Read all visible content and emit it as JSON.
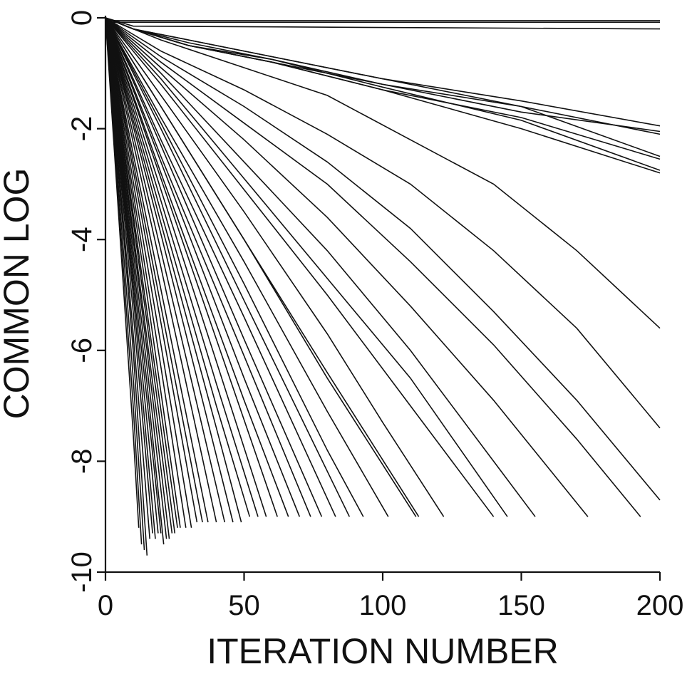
{
  "chart_data": {
    "type": "line",
    "title": "",
    "xlabel": "ITERATION NUMBER",
    "ylabel": "COMMON LOG",
    "xlim": [
      0,
      200
    ],
    "ylim": [
      -10,
      0
    ],
    "x_ticks": [
      "0",
      "50",
      "100",
      "150",
      "200"
    ],
    "y_ticks": [
      "0",
      "-2",
      "-4",
      "-6",
      "-8",
      "-10"
    ],
    "grid": false,
    "legend": "none",
    "line_color": "#111111",
    "series": [
      {
        "x": [
          0,
          200
        ],
        "y": [
          -0.05,
          -0.05
        ]
      },
      {
        "x": [
          0,
          200
        ],
        "y": [
          -0.08,
          -0.08
        ]
      },
      {
        "x": [
          0,
          10,
          200
        ],
        "y": [
          0,
          -0.15,
          -0.2
        ]
      },
      {
        "x": [
          0,
          10,
          30,
          60,
          100,
          150,
          200
        ],
        "y": [
          0,
          -0.2,
          -0.4,
          -0.7,
          -1.1,
          -1.5,
          -1.95
        ]
      },
      {
        "x": [
          0,
          10,
          30,
          60,
          100,
          150,
          200
        ],
        "y": [
          0,
          -0.2,
          -0.45,
          -0.75,
          -1.2,
          -1.7,
          -2.05
        ]
      },
      {
        "x": [
          0,
          10,
          30,
          60,
          100,
          150,
          200
        ],
        "y": [
          0,
          -0.2,
          -0.5,
          -0.8,
          -1.3,
          -1.8,
          -2.55
        ]
      },
      {
        "x": [
          0,
          10,
          30,
          60,
          100,
          150,
          200
        ],
        "y": [
          0,
          -0.2,
          -0.5,
          -0.75,
          -1.25,
          -1.85,
          -2.75
        ]
      },
      {
        "x": [
          0,
          10,
          30,
          60,
          100,
          150,
          200
        ],
        "y": [
          0,
          -0.2,
          -0.5,
          -0.8,
          -1.3,
          -2.0,
          -2.8
        ]
      },
      {
        "x": [
          0,
          10,
          30,
          60,
          100,
          150,
          200
        ],
        "y": [
          0,
          -0.2,
          -0.4,
          -0.7,
          -1.1,
          -1.6,
          -2.1
        ]
      },
      {
        "x": [
          0,
          10,
          30,
          60,
          100,
          150,
          200
        ],
        "y": [
          0,
          -0.2,
          -0.5,
          -0.8,
          -1.2,
          -1.6,
          -2.5
        ]
      },
      {
        "x": [
          0,
          20,
          50,
          80,
          110,
          140,
          170,
          200
        ],
        "y": [
          0,
          -0.4,
          -0.9,
          -1.4,
          -2.2,
          -3.0,
          -4.2,
          -5.6
        ]
      },
      {
        "x": [
          0,
          20,
          50,
          80,
          110,
          140,
          170,
          200
        ],
        "y": [
          0,
          -0.6,
          -1.3,
          -2.1,
          -3.0,
          -4.2,
          -5.6,
          -7.4
        ]
      },
      {
        "x": [
          0,
          20,
          50,
          80,
          110,
          140,
          170,
          200
        ],
        "y": [
          0,
          -0.7,
          -1.6,
          -2.6,
          -3.8,
          -5.3,
          -6.9,
          -8.7
        ]
      },
      {
        "x": [
          0,
          20,
          50,
          80,
          110,
          140,
          170,
          193
        ],
        "y": [
          0,
          -0.8,
          -1.9,
          -3.0,
          -4.4,
          -5.9,
          -7.6,
          -9.0
        ]
      },
      {
        "x": [
          0,
          20,
          50,
          80,
          110,
          140,
          174
        ],
        "y": [
          0,
          -0.9,
          -2.2,
          -3.6,
          -5.2,
          -6.9,
          -9.0
        ]
      },
      {
        "x": [
          0,
          20,
          50,
          80,
          110,
          140,
          155
        ],
        "y": [
          0,
          -1.0,
          -2.6,
          -4.2,
          -6.0,
          -8.0,
          -9.0
        ]
      },
      {
        "x": [
          0,
          20,
          50,
          80,
          110,
          145
        ],
        "y": [
          0,
          -1.1,
          -2.9,
          -4.7,
          -6.5,
          -9.0
        ]
      },
      {
        "x": [
          0,
          20,
          50,
          80,
          110,
          140
        ],
        "y": [
          0,
          -1.2,
          -3.1,
          -5.0,
          -7.0,
          -9.0
        ]
      },
      {
        "x": [
          0,
          20,
          50,
          80,
          100,
          122
        ],
        "y": [
          0,
          -1.4,
          -3.5,
          -5.7,
          -7.3,
          -9.0
        ]
      },
      {
        "x": [
          0,
          20,
          50,
          80,
          113
        ],
        "y": [
          0,
          -1.6,
          -4.0,
          -6.4,
          -9.0
        ]
      },
      {
        "x": [
          0,
          20,
          50,
          80,
          112
        ],
        "y": [
          0,
          -1.6,
          -4.0,
          -6.5,
          -9.0
        ]
      },
      {
        "x": [
          0,
          20,
          50,
          80,
          102
        ],
        "y": [
          0,
          -1.8,
          -4.4,
          -7.1,
          -9.0
        ]
      },
      {
        "x": [
          0,
          20,
          50,
          80,
          93
        ],
        "y": [
          0,
          -1.9,
          -4.8,
          -7.8,
          -9.0
        ]
      },
      {
        "x": [
          0,
          20,
          50,
          88
        ],
        "y": [
          0,
          -2.0,
          -5.1,
          -9.0
        ]
      },
      {
        "x": [
          0,
          20,
          50,
          83
        ],
        "y": [
          0,
          -2.2,
          -5.4,
          -9.0
        ]
      },
      {
        "x": [
          0,
          20,
          50,
          78
        ],
        "y": [
          0,
          -2.3,
          -5.8,
          -9.0
        ]
      },
      {
        "x": [
          0,
          20,
          50,
          74
        ],
        "y": [
          0,
          -2.5,
          -6.1,
          -9.0
        ]
      },
      {
        "x": [
          0,
          20,
          50,
          70
        ],
        "y": [
          0,
          -2.6,
          -6.5,
          -9.0
        ]
      },
      {
        "x": [
          0,
          20,
          50,
          66
        ],
        "y": [
          0,
          -2.8,
          -6.9,
          -9.0
        ]
      },
      {
        "x": [
          0,
          20,
          40,
          62
        ],
        "y": [
          0,
          -2.9,
          -5.8,
          -9.0
        ]
      },
      {
        "x": [
          0,
          20,
          40,
          58
        ],
        "y": [
          0,
          -3.1,
          -6.2,
          -9.0
        ]
      },
      {
        "x": [
          0,
          20,
          40,
          55
        ],
        "y": [
          0,
          -3.3,
          -6.6,
          -9.0
        ]
      },
      {
        "x": [
          0,
          20,
          40,
          52
        ],
        "y": [
          0,
          -3.5,
          -7.0,
          -9.0
        ]
      },
      {
        "x": [
          0,
          20,
          40,
          49
        ],
        "y": [
          0,
          -3.7,
          -7.4,
          -9.1
        ]
      },
      {
        "x": [
          0,
          20,
          46
        ],
        "y": [
          0,
          -3.9,
          -9.1
        ]
      },
      {
        "x": [
          0,
          20,
          43
        ],
        "y": [
          0,
          -4.2,
          -9.1
        ]
      },
      {
        "x": [
          0,
          20,
          40
        ],
        "y": [
          0,
          -4.5,
          -9.1
        ]
      },
      {
        "x": [
          0,
          20,
          37
        ],
        "y": [
          0,
          -4.9,
          -9.1
        ]
      },
      {
        "x": [
          0,
          20,
          35
        ],
        "y": [
          0,
          -5.2,
          -9.1
        ]
      },
      {
        "x": [
          0,
          20,
          33
        ],
        "y": [
          0,
          -5.5,
          -9.1
        ]
      },
      {
        "x": [
          0,
          20,
          31
        ],
        "y": [
          0,
          -5.9,
          -9.2
        ]
      },
      {
        "x": [
          0,
          20,
          29
        ],
        "y": [
          0,
          -6.3,
          -9.2
        ]
      },
      {
        "x": [
          0,
          15,
          27
        ],
        "y": [
          0,
          -5.0,
          -9.2
        ]
      },
      {
        "x": [
          0,
          15,
          26
        ],
        "y": [
          0,
          -5.3,
          -9.2
        ]
      },
      {
        "x": [
          0,
          15,
          25
        ],
        "y": [
          0,
          -5.5,
          -9.3
        ]
      },
      {
        "x": [
          0,
          15,
          24
        ],
        "y": [
          0,
          -5.8,
          -9.3
        ]
      },
      {
        "x": [
          0,
          15,
          23
        ],
        "y": [
          0,
          -6.0,
          -9.4
        ]
      },
      {
        "x": [
          0,
          15,
          22
        ],
        "y": [
          0,
          -6.3,
          -9.4
        ]
      },
      {
        "x": [
          0,
          15,
          21
        ],
        "y": [
          0,
          -6.6,
          -9.5
        ]
      },
      {
        "x": [
          0,
          15,
          20
        ],
        "y": [
          0,
          -6.9,
          -9.3
        ]
      },
      {
        "x": [
          0,
          10,
          19
        ],
        "y": [
          0,
          -4.8,
          -9.3
        ]
      },
      {
        "x": [
          0,
          10,
          18
        ],
        "y": [
          0,
          -5.0,
          -9.4
        ]
      },
      {
        "x": [
          0,
          10,
          17
        ],
        "y": [
          0,
          -5.3,
          -9.3
        ]
      },
      {
        "x": [
          0,
          10,
          16
        ],
        "y": [
          0,
          -5.7,
          -9.4
        ]
      },
      {
        "x": [
          0,
          10,
          15
        ],
        "y": [
          0,
          -6.0,
          -9.7
        ]
      },
      {
        "x": [
          0,
          10,
          14
        ],
        "y": [
          0,
          -6.5,
          -9.6
        ]
      },
      {
        "x": [
          0,
          10,
          13
        ],
        "y": [
          0,
          -7.0,
          -9.5
        ]
      },
      {
        "x": [
          0,
          10,
          12
        ],
        "y": [
          0,
          -7.5,
          -9.2
        ]
      }
    ]
  }
}
